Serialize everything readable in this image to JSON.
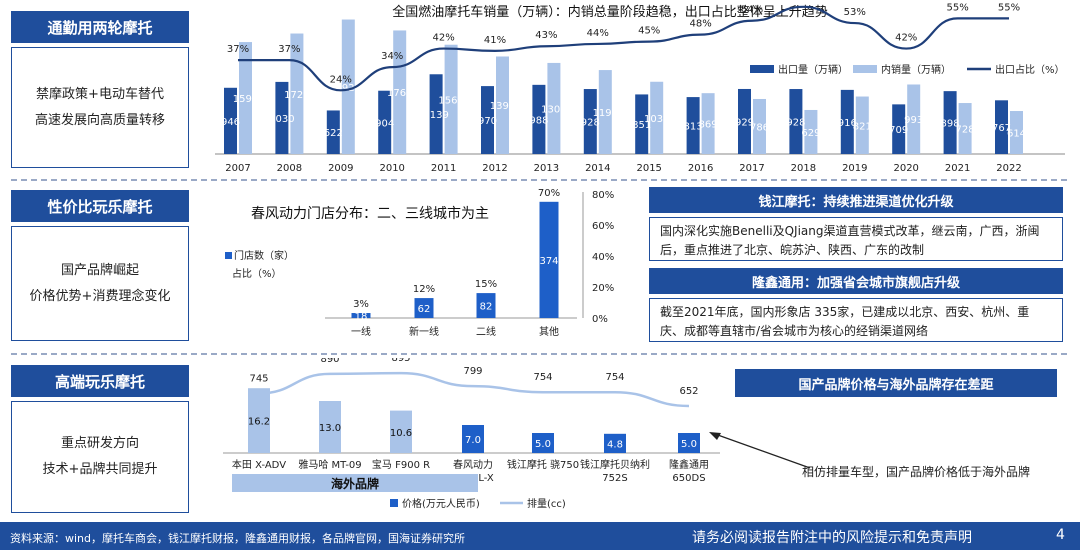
{
  "sections": [
    {
      "title": "通勤用两轮摩托",
      "lines": [
        "禁摩政策+电动车替代",
        "高速发展向高质量转移"
      ]
    },
    {
      "title": "性价比玩乐摩托",
      "lines": [
        "国产品牌崛起",
        "价格优势+消费理念变化"
      ]
    },
    {
      "title": "高端玩乐摩托",
      "lines": [
        "重点研发方向",
        "技术+品牌共同提升"
      ]
    }
  ],
  "panels": {
    "qianjiang": {
      "header": "钱江摩托：持续推进渠道优化升级",
      "body": "国内深化实施Benelli及QJiang渠道直营模式改革，继云南，广西，浙闽后，重点推进了北京、皖苏沪、陕西、广东的改制"
    },
    "longxin": {
      "header": "隆鑫通用：加强省会城市旗舰店升级",
      "body": "截至2021年底，国内形象店 335家，已建成以北京、西安、杭州、重庆、成都等直辖市/省会城市为核心的经销渠道网络"
    },
    "price_gap": {
      "header": "国产品牌价格与海外品牌存在差距"
    },
    "annotation": "相仿排量车型，国产品牌价格低于海外品牌",
    "overseas_label": "海外品牌"
  },
  "footer": {
    "source": "资料来源：wind，摩托车商会，钱江摩托财报，隆鑫通用财报，各品牌官网，国海证券研究所",
    "disclaimer": "请务必阅读报告附注中的风险提示和免责声明",
    "page": "4"
  },
  "colors": {
    "dark": "#1f4e9c",
    "light": "#a9c3e8",
    "line": "#1f3f7a",
    "bar_mid": "#1e5fc8"
  },
  "chart_data": [
    {
      "type": "bar",
      "title": "全国燃油摩托车销量（万辆）：内销总量阶段趋稳，出口占比整体呈上升趋势",
      "categories": [
        "2007",
        "2008",
        "2009",
        "2010",
        "2011",
        "2012",
        "2013",
        "2014",
        "2015",
        "2016",
        "2017",
        "2018",
        "2019",
        "2020",
        "2021",
        "2022"
      ],
      "series": [
        {
          "name": "出口量（万辆）",
          "values": [
            946,
            1030,
            622,
            904,
            1139,
            970,
            988,
            928,
            851,
            813,
            929,
            928,
            916,
            709,
            898,
            767
          ]
        },
        {
          "name": "内销量（万辆）",
          "values": [
            1599,
            1721,
            1921,
            1765,
            1561,
            1393,
            1301,
            1199,
            1032,
            869,
            786,
            629,
            821,
            993,
            728,
            614
          ]
        },
        {
          "name": "出口占比（%）",
          "values": [
            37,
            37,
            24,
            34,
            42,
            41,
            43,
            44,
            45,
            48,
            54,
            60,
            53,
            42,
            55,
            55
          ]
        }
      ],
      "point_labels": [
        "37%",
        "37%",
        "24%",
        "34%",
        "42%",
        "41%",
        "43%",
        "44%",
        "45%",
        "48%",
        "54%",
        "60%",
        "53%",
        "42%",
        "55%",
        "55%"
      ]
    },
    {
      "type": "bar",
      "title": "春风动力门店分布：二、三线城市为主",
      "categories": [
        "一线",
        "新一线",
        "二线",
        "其他"
      ],
      "series": [
        {
          "name": "门店数（家）",
          "values": [
            18,
            62,
            82,
            374
          ]
        },
        {
          "name": "占比（%）",
          "values": [
            3,
            12,
            15,
            70
          ]
        }
      ],
      "point_labels": [
        "3%",
        "12%",
        "15%",
        "70%"
      ],
      "y2_ticks": [
        "80%",
        "60%",
        "40%",
        "20%",
        "0%"
      ]
    },
    {
      "type": "bar",
      "title": "",
      "categories": [
        "本田 X-ADV",
        "雅马哈 MT-09",
        "宝马 F900 R",
        "春风动力 700CL-X",
        "钱江摩托 骁750",
        "钱江摩托贝纳利 752S",
        "隆鑫通用 650DS"
      ],
      "category_lines": [
        [
          "本田 X-ADV"
        ],
        [
          "雅马哈 MT-09"
        ],
        [
          "宝马 F900 R"
        ],
        [
          "春风动力",
          "700CL-X"
        ],
        [
          "钱江摩托 骁750"
        ],
        [
          "钱江摩托贝纳利",
          "752S"
        ],
        [
          "隆鑫通用",
          "650DS"
        ]
      ],
      "series": [
        {
          "name": "价格(万元人民币)",
          "values": [
            16.2,
            13.0,
            10.6,
            7.0,
            5.0,
            4.8,
            5.0
          ]
        },
        {
          "name": "排量(cc)",
          "values": [
            745,
            890,
            895,
            799,
            754,
            754,
            652
          ]
        }
      ],
      "value_labels": [
        "16.2",
        "13.0",
        "10.6",
        "7.0",
        "5.0",
        "4.8",
        "5.0"
      ],
      "line_labels": [
        "745",
        "890",
        "895",
        "799",
        "754",
        "754",
        "652"
      ]
    }
  ]
}
